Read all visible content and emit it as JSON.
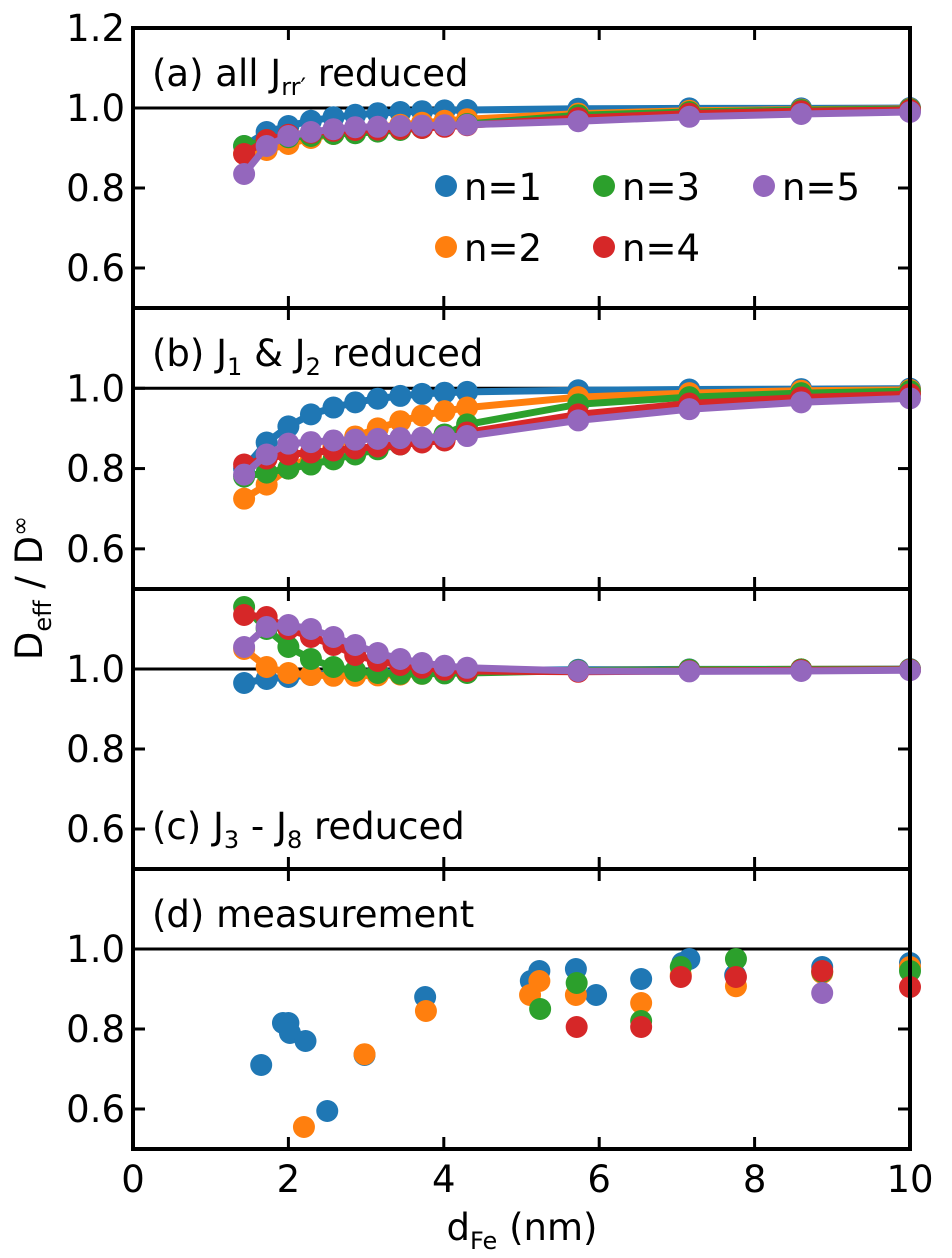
{
  "chart_data": {
    "type": "line",
    "xlabel": {
      "main": "d",
      "sub": "Fe",
      "rest": " (nm)"
    },
    "ylabel": {
      "main": "D",
      "sub": "eff",
      "mid": " / D",
      "sup": "∞"
    },
    "xlim": [
      0,
      10
    ],
    "xticks": [
      0,
      2,
      4,
      6,
      8,
      10
    ],
    "xtick_labels": [
      "0",
      "2",
      "4",
      "6",
      "8",
      "10"
    ],
    "ylim": [
      0.5,
      1.2
    ],
    "yticks": [
      0.6,
      0.8,
      1.0,
      1.2
    ],
    "ytick_labels": [
      "0.6",
      "0.8",
      "1.0",
      "1.2"
    ],
    "reference_line": 1.0,
    "series_meta": [
      {
        "name": "n=1",
        "color": "#1f77b4"
      },
      {
        "name": "n=2",
        "color": "#ff7f0e"
      },
      {
        "name": "n=3",
        "color": "#2ca02c"
      },
      {
        "name": "n=4",
        "color": "#d62728"
      },
      {
        "name": "n=5",
        "color": "#9467bd"
      }
    ],
    "legend": {
      "location": "upper-right of panel (a)",
      "entries": [
        "n=1",
        "n=2",
        "n=3",
        "n=4",
        "n=5"
      ]
    },
    "panels": [
      {
        "id": "a",
        "label_parts": [
          {
            "t": "(a) all J"
          },
          {
            "t": "rr′",
            "sub": true
          },
          {
            "t": " reduced"
          }
        ],
        "label_position": "top-left",
        "style": "line+markers",
        "x": [
          1.43,
          1.72,
          2.0,
          2.29,
          2.58,
          2.86,
          3.15,
          3.44,
          3.72,
          4.01,
          4.3,
          5.73,
          7.16,
          8.6,
          10.0
        ],
        "series": [
          {
            "name": "n=1",
            "values": [
              0.905,
              0.94,
              0.955,
              0.968,
              0.977,
              0.983,
              0.987,
              0.99,
              0.992,
              0.994,
              0.995,
              0.998,
              0.999,
              0.999,
              1.0
            ]
          },
          {
            "name": "n=2",
            "values": [
              0.885,
              0.895,
              0.91,
              0.925,
              0.935,
              0.944,
              0.952,
              0.958,
              0.963,
              0.968,
              0.972,
              0.986,
              0.993,
              0.996,
              0.998
            ]
          },
          {
            "name": "n=3",
            "values": [
              0.905,
              0.92,
              0.927,
              0.93,
              0.935,
              0.937,
              0.941,
              0.945,
              0.95,
              0.955,
              0.96,
              0.982,
              0.99,
              0.995,
              0.997
            ]
          },
          {
            "name": "n=4",
            "values": [
              0.885,
              0.92,
              0.933,
              0.938,
              0.943,
              0.945,
              0.946,
              0.948,
              0.95,
              0.953,
              0.957,
              0.975,
              0.986,
              0.992,
              0.995
            ]
          },
          {
            "name": "n=5",
            "values": [
              0.835,
              0.905,
              0.93,
              0.94,
              0.947,
              0.952,
              0.953,
              0.955,
              0.956,
              0.957,
              0.958,
              0.967,
              0.978,
              0.985,
              0.99
            ]
          }
        ]
      },
      {
        "id": "b",
        "label_parts": [
          {
            "t": "(b) J"
          },
          {
            "t": "1",
            "sub": true
          },
          {
            "t": " & J"
          },
          {
            "t": "2",
            "sub": true
          },
          {
            "t": " reduced"
          }
        ],
        "label_position": "top-left",
        "style": "line+markers",
        "x": [
          1.43,
          1.72,
          2.0,
          2.29,
          2.58,
          2.86,
          3.15,
          3.44,
          3.72,
          4.01,
          4.3,
          5.73,
          7.16,
          8.6,
          10.0
        ],
        "series": [
          {
            "name": "n=1",
            "values": [
              0.8,
              0.865,
              0.905,
              0.935,
              0.952,
              0.965,
              0.974,
              0.981,
              0.986,
              0.989,
              0.991,
              0.995,
              0.997,
              0.998,
              0.999
            ]
          },
          {
            "name": "n=2",
            "values": [
              0.725,
              0.76,
              0.8,
              0.83,
              0.855,
              0.88,
              0.9,
              0.918,
              0.932,
              0.943,
              0.952,
              0.978,
              0.988,
              0.994,
              0.996
            ]
          },
          {
            "name": "n=3",
            "values": [
              0.78,
              0.79,
              0.8,
              0.81,
              0.823,
              0.835,
              0.848,
              0.86,
              0.872,
              0.885,
              0.91,
              0.96,
              0.978,
              0.988,
              0.993
            ]
          },
          {
            "name": "n=4",
            "values": [
              0.81,
              0.825,
              0.835,
              0.84,
              0.845,
              0.85,
              0.855,
              0.86,
              0.865,
              0.87,
              0.89,
              0.935,
              0.962,
              0.977,
              0.985
            ]
          },
          {
            "name": "n=5",
            "values": [
              0.785,
              0.835,
              0.862,
              0.866,
              0.87,
              0.872,
              0.874,
              0.876,
              0.877,
              0.879,
              0.881,
              0.92,
              0.948,
              0.965,
              0.975
            ]
          }
        ]
      },
      {
        "id": "c",
        "label_parts": [
          {
            "t": "(c) J"
          },
          {
            "t": "3",
            "sub": true
          },
          {
            "t": " - J"
          },
          {
            "t": "8",
            "sub": true
          },
          {
            "t": " reduced"
          }
        ],
        "label_position": "bottom-left",
        "style": "line+markers",
        "x": [
          1.43,
          1.72,
          2.0,
          2.29,
          2.58,
          2.86,
          3.15,
          3.44,
          3.72,
          4.01,
          4.3,
          5.73,
          7.16,
          8.6,
          10.0
        ],
        "series": [
          {
            "name": "n=1",
            "values": [
              0.965,
              0.975,
              0.98,
              0.985,
              0.988,
              0.99,
              0.992,
              0.993,
              0.994,
              0.995,
              0.996,
              0.998,
              0.999,
              0.999,
              1.0
            ]
          },
          {
            "name": "n=2",
            "values": [
              1.05,
              1.005,
              0.99,
              0.985,
              0.983,
              0.983,
              0.984,
              0.986,
              0.988,
              0.99,
              0.992,
              0.996,
              0.998,
              0.999,
              0.999
            ]
          },
          {
            "name": "n=3",
            "values": [
              1.155,
              1.1,
              1.055,
              1.025,
              1.005,
              0.995,
              0.99,
              0.988,
              0.988,
              0.989,
              0.99,
              0.996,
              0.998,
              0.999,
              0.999
            ]
          },
          {
            "name": "n=4",
            "values": [
              1.135,
              1.13,
              1.1,
              1.08,
              1.06,
              1.035,
              1.02,
              1.01,
              1.003,
              0.998,
              0.995,
              0.993,
              0.995,
              0.997,
              0.998
            ]
          },
          {
            "name": "n=5",
            "values": [
              1.055,
              1.105,
              1.11,
              1.1,
              1.08,
              1.06,
              1.04,
              1.025,
              1.015,
              1.008,
              1.003,
              0.995,
              0.994,
              0.995,
              0.997
            ]
          }
        ]
      },
      {
        "id": "d",
        "label_parts": [
          {
            "t": "(d) measurement"
          }
        ],
        "label_position": "top-left",
        "style": "markers",
        "scatter": [
          {
            "name": "n=1",
            "points": [
              [
                1.65,
                0.71
              ],
              [
                1.93,
                0.815
              ],
              [
                2.0,
                0.815
              ],
              [
                2.02,
                0.79
              ],
              [
                2.22,
                0.77
              ],
              [
                2.5,
                0.595
              ],
              [
                2.98,
                0.735
              ],
              [
                3.76,
                0.88
              ],
              [
                5.12,
                0.92
              ],
              [
                5.23,
                0.945
              ],
              [
                5.7,
                0.95
              ],
              [
                5.96,
                0.885
              ],
              [
                6.54,
                0.925
              ],
              [
                7.07,
                0.965
              ],
              [
                7.16,
                0.975
              ],
              [
                7.75,
                0.935
              ],
              [
                8.87,
                0.955
              ],
              [
                10.0,
                0.965
              ]
            ]
          },
          {
            "name": "n=2",
            "points": [
              [
                2.2,
                0.555
              ],
              [
                2.98,
                0.737
              ],
              [
                3.77,
                0.845
              ],
              [
                5.11,
                0.885
              ],
              [
                5.23,
                0.92
              ],
              [
                5.7,
                0.885
              ],
              [
                6.54,
                0.865
              ],
              [
                7.05,
                0.935
              ],
              [
                7.76,
                0.907
              ],
              [
                8.87,
                0.94
              ],
              [
                10.0,
                0.955
              ]
            ]
          },
          {
            "name": "n=3",
            "points": [
              [
                5.24,
                0.85
              ],
              [
                5.71,
                0.915
              ],
              [
                6.54,
                0.82
              ],
              [
                7.05,
                0.955
              ],
              [
                7.76,
                0.975
              ],
              [
                8.87,
                0.943
              ],
              [
                10.0,
                0.945
              ]
            ]
          },
          {
            "name": "n=4",
            "points": [
              [
                5.71,
                0.805
              ],
              [
                6.54,
                0.805
              ],
              [
                7.05,
                0.93
              ],
              [
                7.76,
                0.93
              ],
              [
                8.87,
                0.945
              ],
              [
                10.0,
                0.905
              ]
            ]
          },
          {
            "name": "n=5",
            "points": [
              [
                8.87,
                0.89
              ]
            ]
          }
        ]
      }
    ]
  }
}
